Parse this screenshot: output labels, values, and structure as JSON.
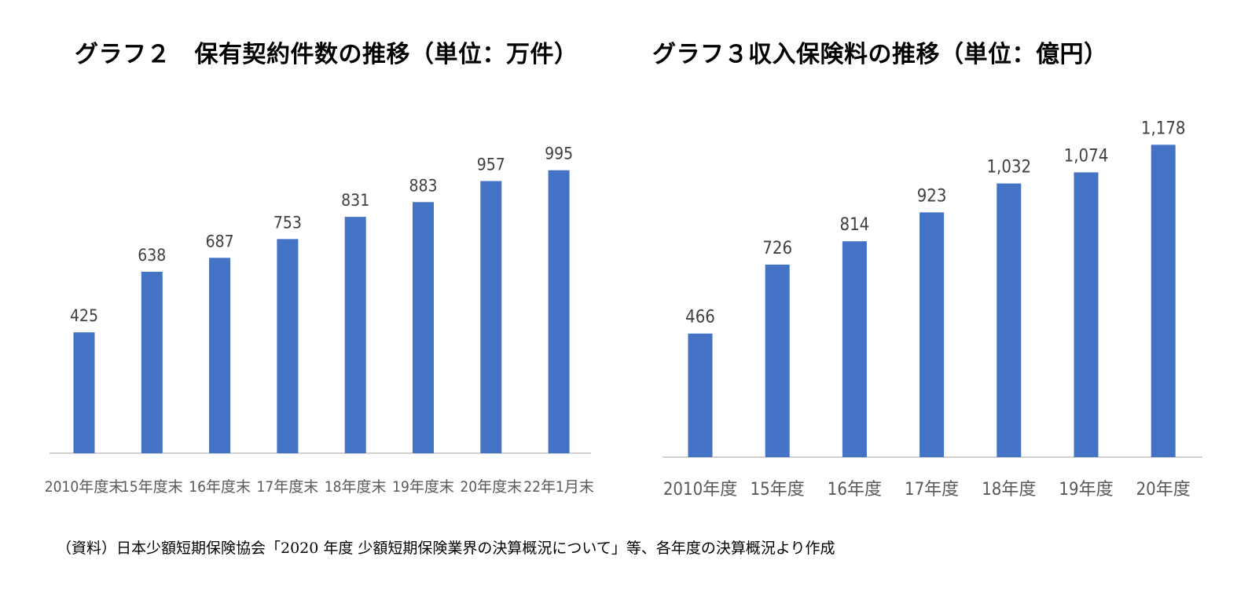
{
  "chart_data": [
    {
      "type": "bar",
      "title": "グラフ２　保有契約件数の推移（単位：万件）",
      "categories": [
        "2010年度末",
        "15年度末",
        "16年度末",
        "17年度末",
        "18年度末",
        "19年度末",
        "20年度末",
        "22年1月末"
      ],
      "values": [
        425,
        638,
        687,
        753,
        831,
        883,
        957,
        995
      ],
      "value_labels": [
        "425",
        "638",
        "687",
        "753",
        "831",
        "883",
        "957",
        "995"
      ],
      "ylim": [
        0,
        1160
      ],
      "grid": false,
      "bar_color": "#4472C4"
    },
    {
      "type": "bar",
      "title": "グラフ３収入保険料の推移（単位：億円）",
      "categories": [
        "2010年度",
        "15年度",
        "16年度",
        "17年度",
        "18年度",
        "19年度",
        "20年度"
      ],
      "values": [
        466,
        726,
        814,
        923,
        1032,
        1074,
        1178
      ],
      "value_labels": [
        "466",
        "726",
        "814",
        "923",
        "1,032",
        "1,074",
        "1,178"
      ],
      "ylim": [
        0,
        1250
      ],
      "grid": false,
      "bar_color": "#4472C4"
    }
  ],
  "source_note": "（資料）日本少額短期保険協会「2020 年度  少額短期保険業界の決算概況について」等、各年度の決算概況より作成"
}
